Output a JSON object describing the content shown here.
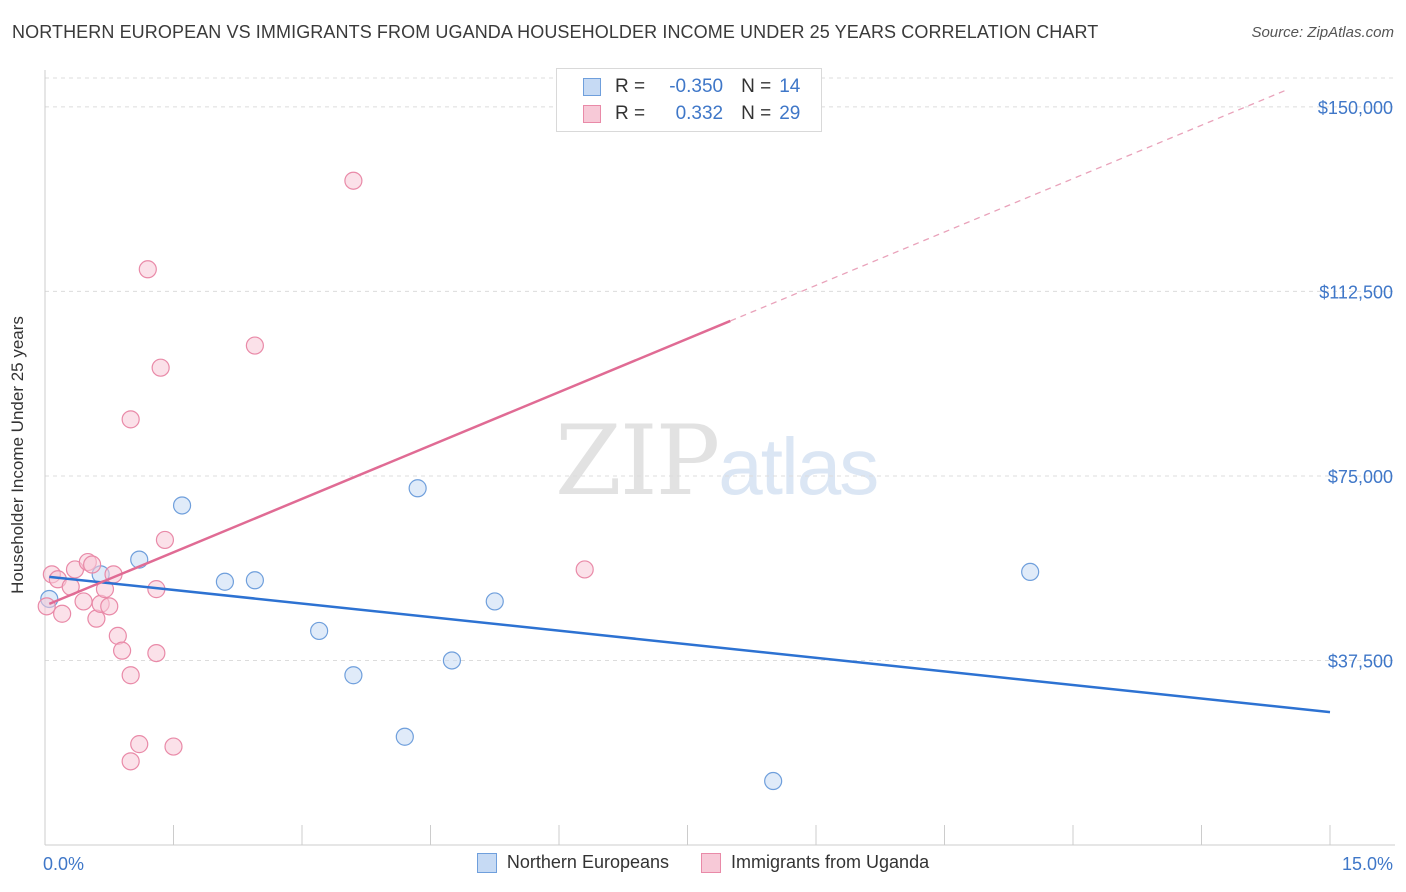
{
  "header": {
    "title": "NORTHERN EUROPEAN VS IMMIGRANTS FROM UGANDA HOUSEHOLDER INCOME UNDER 25 YEARS CORRELATION CHART",
    "source": "Source: ZipAtlas.com"
  },
  "watermark": {
    "zip": "ZIP",
    "atlas": "atlas"
  },
  "legend": {
    "r_label": "R =",
    "n_label": "N =",
    "rows": [
      {
        "r": "-0.350",
        "n": "14",
        "color": "#a9c8ef",
        "border": "#6f9fdc"
      },
      {
        "r": "0.332",
        "n": "29",
        "color": "#f7c3d3",
        "border": "#e98aa8"
      }
    ]
  },
  "chart_data": {
    "type": "scatter",
    "title": "NORTHERN EUROPEAN VS IMMIGRANTS FROM UGANDA HOUSEHOLDER INCOME UNDER 25 YEARS CORRELATION CHART",
    "xlabel": "",
    "ylabel": "Householder Income Under 25 years",
    "xlim": [
      0,
      15
    ],
    "ylim": [
      0,
      157500
    ],
    "x_tick_labels": [
      "0.0%",
      "15.0%"
    ],
    "y_ticks": [
      37500,
      75000,
      112500,
      150000
    ],
    "y_tick_labels": [
      "$37,500",
      "$75,000",
      "$112,500",
      "$150,000"
    ],
    "grid": "horizontal dashed",
    "legend_position": "bottom",
    "series": [
      {
        "name": "Northern Europeans",
        "color": "#6f9fdc",
        "fill": "#c6daf4",
        "points": [
          [
            0.05,
            50000
          ],
          [
            0.65,
            55000
          ],
          [
            1.1,
            58000
          ],
          [
            1.6,
            69000
          ],
          [
            2.1,
            53500
          ],
          [
            2.45,
            53800
          ],
          [
            3.2,
            43500
          ],
          [
            3.6,
            34500
          ],
          [
            4.2,
            22000
          ],
          [
            4.35,
            72500
          ],
          [
            4.75,
            37500
          ],
          [
            5.25,
            49500
          ],
          [
            8.5,
            13000
          ],
          [
            11.5,
            55500
          ]
        ],
        "trend": {
          "x0": 0.05,
          "y0": 54500,
          "x1": 15.0,
          "y1": 27000,
          "style": "solid"
        }
      },
      {
        "name": "Immigrants from Uganda",
        "color": "#e98aa8",
        "fill": "#f7c9d7",
        "points": [
          [
            0.02,
            48500
          ],
          [
            0.08,
            55000
          ],
          [
            0.15,
            54000
          ],
          [
            0.2,
            47000
          ],
          [
            0.3,
            52500
          ],
          [
            0.35,
            56000
          ],
          [
            0.45,
            49500
          ],
          [
            0.5,
            57500
          ],
          [
            0.55,
            57000
          ],
          [
            0.6,
            46000
          ],
          [
            0.65,
            49000
          ],
          [
            0.7,
            52000
          ],
          [
            0.75,
            48500
          ],
          [
            0.85,
            42500
          ],
          [
            0.8,
            55000
          ],
          [
            0.9,
            39500
          ],
          [
            1.0,
            34500
          ],
          [
            1.0,
            86500
          ],
          [
            1.1,
            20500
          ],
          [
            1.0,
            17000
          ],
          [
            1.2,
            117000
          ],
          [
            1.3,
            39000
          ],
          [
            1.3,
            52000
          ],
          [
            1.35,
            97000
          ],
          [
            1.4,
            62000
          ],
          [
            1.5,
            20000
          ],
          [
            2.45,
            101500
          ],
          [
            3.6,
            135000
          ],
          [
            6.3,
            56000
          ]
        ],
        "trend": {
          "x0": 0.05,
          "y0": 49000,
          "x1": 8.0,
          "y1": 106500,
          "style": "solid",
          "extension": {
            "x1": 14.5,
            "y1": 153500,
            "style": "dashed"
          }
        }
      }
    ]
  }
}
